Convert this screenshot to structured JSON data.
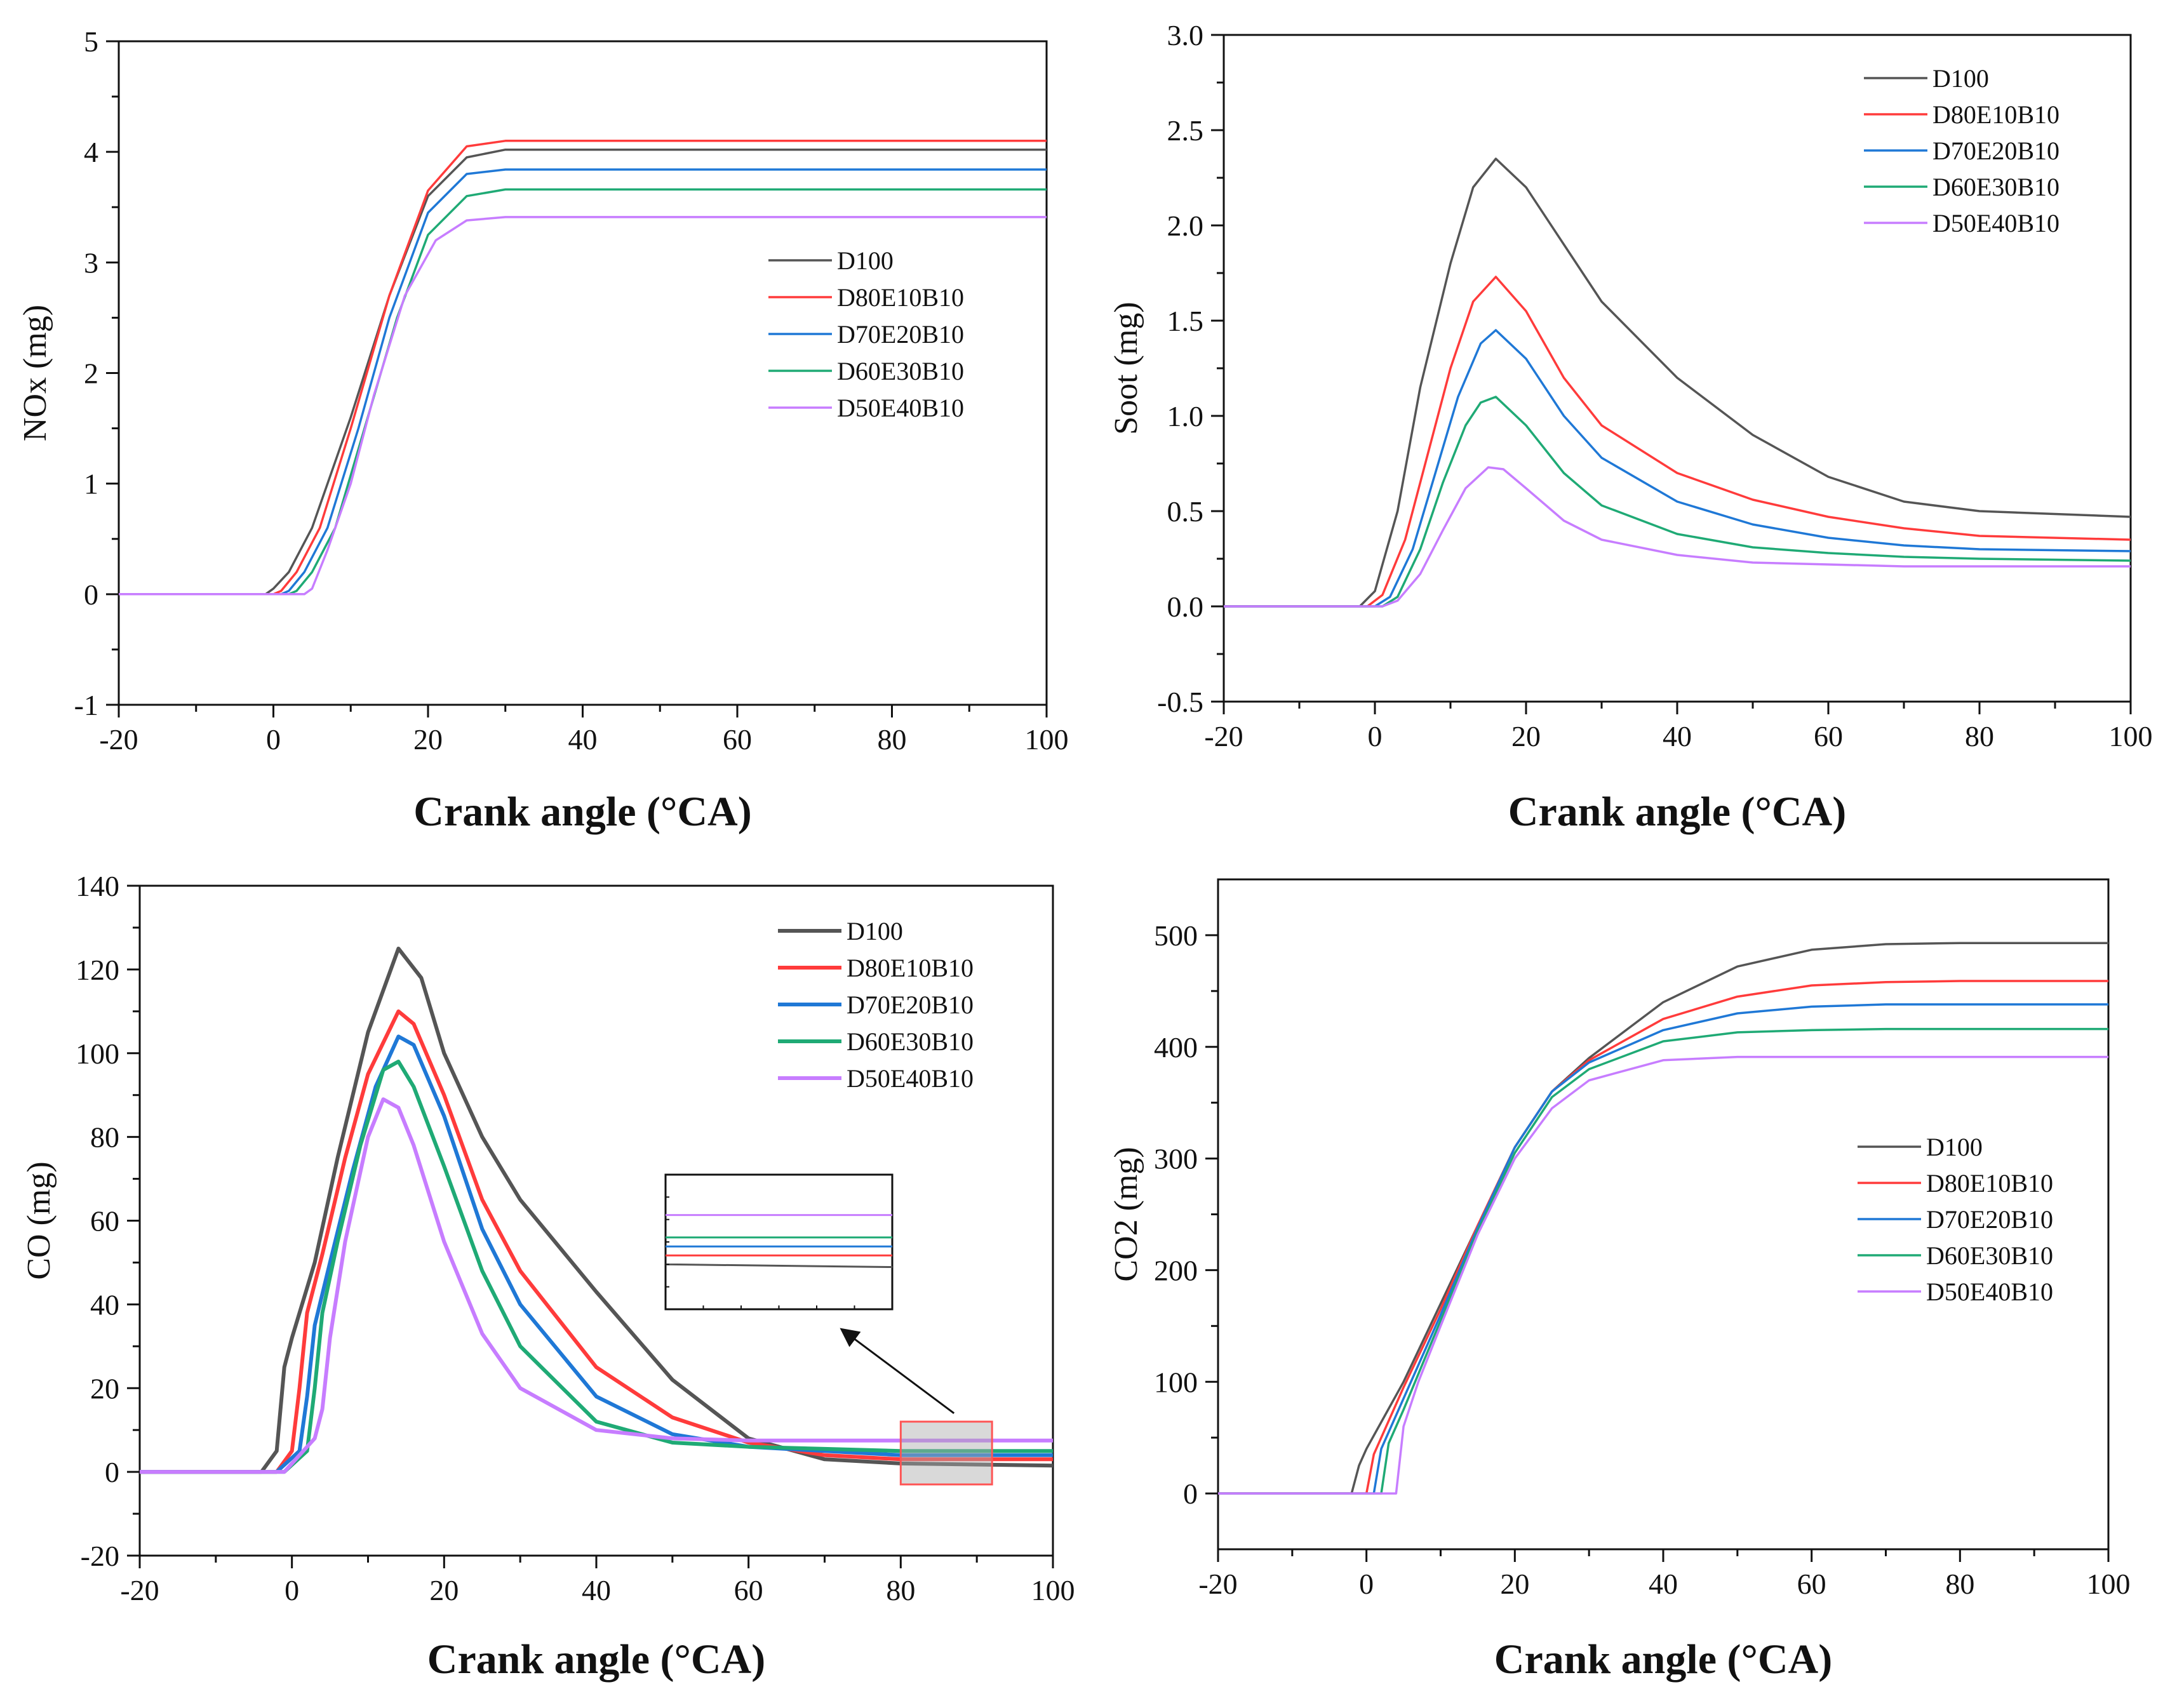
{
  "colors": {
    "D100": "#555555",
    "D80E10B10": "#ff3b3b",
    "D70E20B10": "#1f78d6",
    "D60E30B10": "#1faa75",
    "D50E40B10": "#c77dff"
  },
  "chart_data": [
    {
      "id": "nox",
      "type": "line",
      "title": "",
      "xlabel": "Crank angle (°CA)",
      "ylabel": "NOx (mg)",
      "xlim": [
        -20,
        100
      ],
      "ylim": [
        -1,
        5
      ],
      "xticks": [
        -20,
        0,
        20,
        40,
        60,
        80,
        100
      ],
      "yticks": [
        -1,
        0,
        1,
        2,
        3,
        4,
        5
      ],
      "xtick_labels": [
        "-20",
        "0",
        "20",
        "40",
        "60",
        "80",
        "100"
      ],
      "ytick_labels": [
        "-1",
        "0",
        "1",
        "2",
        "3",
        "4",
        "5"
      ],
      "legend_position": "center-right",
      "series": [
        {
          "name": "D100",
          "color": "#555555",
          "x": [
            -20,
            -1,
            0,
            2,
            5,
            10,
            15,
            20,
            25,
            30,
            40,
            60,
            80,
            100
          ],
          "values": [
            0,
            0,
            0.05,
            0.2,
            0.6,
            1.6,
            2.7,
            3.6,
            3.95,
            4.02,
            4.02,
            4.02,
            4.02,
            4.02
          ]
        },
        {
          "name": "D80E10B10",
          "color": "#ff3b3b",
          "x": [
            -20,
            0,
            1,
            3,
            6,
            10,
            15,
            20,
            25,
            30,
            40,
            60,
            80,
            100
          ],
          "values": [
            0,
            0,
            0.03,
            0.2,
            0.6,
            1.5,
            2.7,
            3.65,
            4.05,
            4.1,
            4.1,
            4.1,
            4.1,
            4.1
          ]
        },
        {
          "name": "D70E20B10",
          "color": "#1f78d6",
          "x": [
            -20,
            1,
            2,
            4,
            7,
            11,
            15,
            20,
            25,
            30,
            40,
            60,
            80,
            100
          ],
          "values": [
            0,
            0,
            0.03,
            0.2,
            0.6,
            1.5,
            2.5,
            3.45,
            3.8,
            3.84,
            3.84,
            3.84,
            3.84,
            3.84
          ]
        },
        {
          "name": "D60E30B10",
          "color": "#1faa75",
          "x": [
            -20,
            2,
            3,
            5,
            8,
            12,
            16,
            20,
            25,
            30,
            40,
            60,
            80,
            100
          ],
          "values": [
            0,
            0,
            0.03,
            0.2,
            0.6,
            1.55,
            2.5,
            3.25,
            3.6,
            3.66,
            3.66,
            3.66,
            3.66,
            3.66
          ]
        },
        {
          "name": "D50E40B10",
          "color": "#c77dff",
          "x": [
            -20,
            4,
            5,
            7,
            10,
            13,
            17,
            21,
            25,
            30,
            40,
            60,
            80,
            100
          ],
          "values": [
            0,
            0,
            0.05,
            0.4,
            1.0,
            1.8,
            2.7,
            3.2,
            3.38,
            3.41,
            3.41,
            3.41,
            3.41,
            3.41
          ]
        }
      ]
    },
    {
      "id": "soot",
      "type": "line",
      "title": "",
      "xlabel": "Crank angle (°CA)",
      "ylabel": "Soot (mg)",
      "xlim": [
        -20,
        100
      ],
      "ylim": [
        -0.5,
        3.0
      ],
      "xticks": [
        -20,
        0,
        20,
        40,
        60,
        80,
        100
      ],
      "yticks": [
        -0.5,
        0,
        0.5,
        1.0,
        1.5,
        2.0,
        2.5,
        3.0
      ],
      "xtick_labels": [
        "-20",
        "0",
        "20",
        "40",
        "60",
        "80",
        "100"
      ],
      "ytick_labels": [
        "-0.5",
        "0.0",
        "0.5",
        "1.0",
        "1.5",
        "2.0",
        "2.5",
        "3.0"
      ],
      "legend_position": "top-right",
      "series": [
        {
          "name": "D100",
          "color": "#555555",
          "x": [
            -20,
            -2,
            0,
            3,
            6,
            10,
            13,
            16,
            20,
            25,
            30,
            40,
            50,
            60,
            70,
            80,
            100
          ],
          "values": [
            0,
            0,
            0.08,
            0.5,
            1.15,
            1.8,
            2.2,
            2.35,
            2.2,
            1.9,
            1.6,
            1.2,
            0.9,
            0.68,
            0.55,
            0.5,
            0.47
          ]
        },
        {
          "name": "D80E10B10",
          "color": "#ff3b3b",
          "x": [
            -20,
            -1,
            1,
            4,
            7,
            10,
            13,
            16,
            20,
            25,
            30,
            40,
            50,
            60,
            70,
            80,
            100
          ],
          "values": [
            0,
            0,
            0.06,
            0.35,
            0.8,
            1.25,
            1.6,
            1.73,
            1.55,
            1.2,
            0.95,
            0.7,
            0.56,
            0.47,
            0.41,
            0.37,
            0.35
          ]
        },
        {
          "name": "D70E20B10",
          "color": "#1f78d6",
          "x": [
            -20,
            0,
            2,
            5,
            8,
            11,
            14,
            16,
            20,
            25,
            30,
            40,
            50,
            60,
            70,
            80,
            100
          ],
          "values": [
            0,
            0,
            0.05,
            0.3,
            0.7,
            1.1,
            1.38,
            1.45,
            1.3,
            1.0,
            0.78,
            0.55,
            0.43,
            0.36,
            0.32,
            0.3,
            0.29
          ]
        },
        {
          "name": "D60E30B10",
          "color": "#1faa75",
          "x": [
            -20,
            1,
            3,
            6,
            9,
            12,
            14,
            16,
            20,
            25,
            30,
            40,
            50,
            60,
            70,
            80,
            100
          ],
          "values": [
            0,
            0,
            0.05,
            0.3,
            0.65,
            0.95,
            1.07,
            1.1,
            0.95,
            0.7,
            0.53,
            0.38,
            0.31,
            0.28,
            0.26,
            0.25,
            0.24
          ]
        },
        {
          "name": "D50E40B10",
          "color": "#c77dff",
          "x": [
            -20,
            1,
            3,
            6,
            9,
            12,
            15,
            17,
            20,
            25,
            30,
            40,
            50,
            60,
            70,
            80,
            100
          ],
          "values": [
            0,
            0,
            0.03,
            0.17,
            0.4,
            0.62,
            0.73,
            0.72,
            0.62,
            0.45,
            0.35,
            0.27,
            0.23,
            0.22,
            0.21,
            0.21,
            0.21
          ]
        }
      ]
    },
    {
      "id": "co",
      "type": "line",
      "title": "",
      "xlabel": "Crank angle (°CA)",
      "ylabel": "CO (mg)",
      "xlim": [
        -20,
        100
      ],
      "ylim": [
        -20,
        140
      ],
      "xticks": [
        -20,
        0,
        20,
        40,
        60,
        80,
        100
      ],
      "yticks": [
        -20,
        0,
        20,
        40,
        60,
        80,
        100,
        120,
        140
      ],
      "xtick_labels": [
        "-20",
        "0",
        "20",
        "40",
        "60",
        "80",
        "100"
      ],
      "ytick_labels": [
        "-20",
        "0",
        "20",
        "40",
        "60",
        "80",
        "100",
        "120",
        "140"
      ],
      "legend_position": "top-right",
      "series": [
        {
          "name": "D100",
          "color": "#555555",
          "x": [
            -20,
            -4,
            -2,
            -1,
            0,
            3,
            6,
            10,
            14,
            17,
            20,
            25,
            30,
            40,
            50,
            60,
            70,
            80,
            100
          ],
          "values": [
            0,
            0,
            5,
            25,
            32,
            50,
            75,
            105,
            125,
            118,
            100,
            80,
            65,
            43,
            22,
            8,
            3,
            2,
            1.5
          ]
        },
        {
          "name": "D80E10B10",
          "color": "#ff3b3b",
          "x": [
            -20,
            -2,
            0,
            1,
            2,
            4,
            7,
            10,
            14,
            16,
            20,
            25,
            30,
            40,
            50,
            60,
            70,
            80,
            100
          ],
          "values": [
            0,
            0,
            5,
            20,
            38,
            52,
            75,
            95,
            110,
            107,
            90,
            65,
            48,
            25,
            13,
            7,
            4,
            3,
            3
          ]
        },
        {
          "name": "D70E20B10",
          "color": "#1f78d6",
          "x": [
            -20,
            -2,
            1,
            2,
            3,
            5,
            8,
            11,
            14,
            16,
            20,
            25,
            30,
            40,
            50,
            60,
            70,
            80,
            100
          ],
          "values": [
            0,
            0,
            5,
            18,
            35,
            50,
            72,
            92,
            104,
            102,
            85,
            58,
            40,
            18,
            9,
            6,
            5,
            4,
            4
          ]
        },
        {
          "name": "D60E30B10",
          "color": "#1faa75",
          "x": [
            -20,
            -1,
            2,
            3,
            4,
            6,
            9,
            12,
            14,
            16,
            20,
            25,
            30,
            40,
            50,
            60,
            70,
            80,
            100
          ],
          "values": [
            0,
            0,
            5,
            20,
            38,
            55,
            78,
            96,
            98,
            92,
            73,
            48,
            30,
            12,
            7,
            6,
            5.5,
            5,
            5
          ]
        },
        {
          "name": "D50E40B10",
          "color": "#c77dff",
          "x": [
            -20,
            -1,
            3,
            4,
            5,
            7,
            10,
            12,
            14,
            16,
            20,
            25,
            30,
            40,
            50,
            60,
            70,
            80,
            100
          ],
          "values": [
            0,
            0,
            8,
            15,
            32,
            55,
            80,
            89,
            87,
            78,
            55,
            33,
            20,
            10,
            8,
            7.5,
            7.5,
            7.5,
            7.5
          ]
        }
      ],
      "inset": {
        "x_range": [
          80,
          92
        ],
        "y_range": [
          -3,
          12
        ],
        "arrow_from": [
          87,
          14
        ],
        "arrow_to": [
          73,
          33
        ]
      }
    },
    {
      "id": "co2",
      "type": "line",
      "title": "",
      "xlabel": "Crank angle (°CA)",
      "ylabel": "CO2 (mg)",
      "xlim": [
        -20,
        100
      ],
      "ylim": [
        -50,
        550
      ],
      "xticks": [
        -20,
        0,
        20,
        40,
        60,
        80,
        100
      ],
      "yticks": [
        0,
        100,
        200,
        300,
        400,
        500
      ],
      "xtick_labels": [
        "-20",
        "0",
        "20",
        "40",
        "60",
        "80",
        "100"
      ],
      "ytick_labels": [
        "0",
        "100",
        "200",
        "300",
        "400",
        "500"
      ],
      "legend_position": "center-right",
      "series": [
        {
          "name": "D100",
          "color": "#555555",
          "x": [
            -20,
            -2,
            -1,
            0,
            5,
            10,
            15,
            20,
            25,
            30,
            40,
            50,
            60,
            70,
            80,
            100
          ],
          "values": [
            0,
            0,
            25,
            40,
            100,
            170,
            240,
            310,
            360,
            390,
            440,
            472,
            487,
            492,
            493,
            493
          ]
        },
        {
          "name": "D80E10B10",
          "color": "#ff3b3b",
          "x": [
            -20,
            0,
            1,
            5,
            10,
            15,
            20,
            25,
            30,
            40,
            50,
            60,
            70,
            80,
            100
          ],
          "values": [
            0,
            0,
            35,
            95,
            165,
            240,
            310,
            360,
            388,
            425,
            445,
            455,
            458,
            459,
            459
          ]
        },
        {
          "name": "D70E20B10",
          "color": "#1f78d6",
          "x": [
            -20,
            1,
            2,
            5,
            10,
            15,
            20,
            25,
            30,
            40,
            50,
            60,
            70,
            80,
            100
          ],
          "values": [
            0,
            0,
            40,
            85,
            160,
            238,
            310,
            360,
            386,
            415,
            430,
            436,
            438,
            438,
            438
          ]
        },
        {
          "name": "D60E30B10",
          "color": "#1faa75",
          "x": [
            -20,
            2,
            3,
            5,
            10,
            15,
            20,
            25,
            30,
            40,
            50,
            60,
            70,
            80,
            100
          ],
          "values": [
            0,
            0,
            45,
            75,
            155,
            235,
            305,
            355,
            380,
            405,
            413,
            415,
            416,
            416,
            416
          ]
        },
        {
          "name": "D50E40B10",
          "color": "#c77dff",
          "x": [
            -20,
            4,
            5,
            7,
            10,
            15,
            20,
            25,
            30,
            40,
            50,
            60,
            70,
            80,
            100
          ],
          "values": [
            0,
            0,
            60,
            100,
            150,
            232,
            300,
            345,
            370,
            388,
            391,
            391,
            391,
            391,
            391
          ]
        }
      ]
    }
  ]
}
